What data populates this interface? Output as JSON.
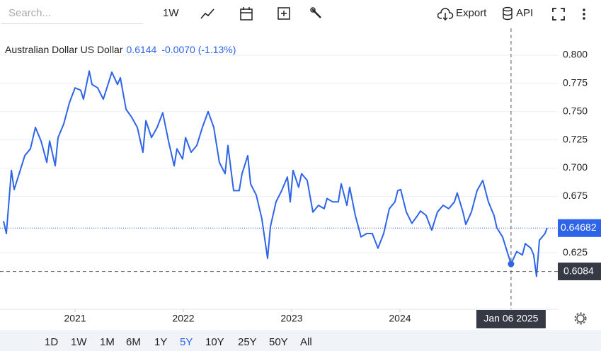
{
  "toolbar": {
    "search_placeholder": "Search...",
    "interval": "1W",
    "export": "Export",
    "api": "API"
  },
  "ranges": [
    "1D",
    "1W",
    "1M",
    "6M",
    "1Y",
    "5Y",
    "10Y",
    "25Y",
    "50Y",
    "All"
  ],
  "active_range": "5Y",
  "chart_data": {
    "type": "line",
    "legend": {
      "name": "Australian Dollar US Dollar",
      "price": "0.6144",
      "change": "-0.0070 (-1.13%)"
    },
    "x": [
      2020.34,
      2020.366,
      2020.412,
      2020.438,
      2020.484,
      2020.536,
      2020.588,
      2020.634,
      2020.686,
      2020.739,
      2020.765,
      2020.817,
      2020.843,
      2020.895,
      2020.948,
      2021.0,
      2021.052,
      2021.078,
      2021.131,
      2021.157,
      2021.209,
      2021.261,
      2021.314,
      2021.34,
      2021.392,
      2021.418,
      2021.471,
      2021.523,
      2021.575,
      2021.627,
      2021.654,
      2021.706,
      2021.758,
      2021.81,
      2021.863,
      2021.915,
      2021.941,
      2021.993,
      2022.02,
      2022.072,
      2022.124,
      2022.176,
      2022.229,
      2022.281,
      2022.333,
      2022.386,
      2022.412,
      2022.464,
      2022.516,
      2022.542,
      2022.595,
      2022.621,
      2022.673,
      2022.725,
      2022.778,
      2022.804,
      2022.856,
      2022.908,
      2022.961,
      2022.987,
      2023.013,
      2023.065,
      2023.092,
      2023.144,
      2023.196,
      2023.248,
      2023.301,
      2023.327,
      2023.379,
      2023.431,
      2023.458,
      2023.51,
      2023.536,
      2023.588,
      2023.641,
      2023.693,
      2023.745,
      2023.797,
      2023.85,
      2023.902,
      2023.954,
      2023.98,
      2024.007,
      2024.059,
      2024.111,
      2024.163,
      2024.19,
      2024.242,
      2024.294,
      2024.346,
      2024.399,
      2024.451,
      2024.503,
      2024.529,
      2024.582,
      2024.608,
      2024.66,
      2024.712,
      2024.765,
      2024.817,
      2024.869,
      2024.895,
      2024.948,
      2025.0,
      2025.026,
      2025.078,
      2025.131,
      2025.157,
      2025.209,
      2025.235,
      2025.261,
      2025.288,
      2025.34,
      2025.359
    ],
    "series": [
      {
        "name": "Australian Dollar US Dollar",
        "color": "#2e64e8",
        "values": [
          0.653,
          0.642,
          0.698,
          0.681,
          0.695,
          0.711,
          0.717,
          0.736,
          0.724,
          0.705,
          0.724,
          0.702,
          0.727,
          0.739,
          0.758,
          0.771,
          0.769,
          0.761,
          0.786,
          0.774,
          0.771,
          0.761,
          0.777,
          0.785,
          0.774,
          0.78,
          0.752,
          0.745,
          0.736,
          0.714,
          0.742,
          0.727,
          0.736,
          0.749,
          0.724,
          0.702,
          0.717,
          0.708,
          0.727,
          0.714,
          0.72,
          0.736,
          0.75,
          0.736,
          0.705,
          0.695,
          0.72,
          0.68,
          0.68,
          0.695,
          0.711,
          0.686,
          0.676,
          0.655,
          0.62,
          0.648,
          0.67,
          0.68,
          0.692,
          0.67,
          0.698,
          0.683,
          0.695,
          0.689,
          0.661,
          0.667,
          0.664,
          0.673,
          0.67,
          0.67,
          0.686,
          0.667,
          0.683,
          0.658,
          0.639,
          0.642,
          0.642,
          0.629,
          0.642,
          0.664,
          0.67,
          0.68,
          0.681,
          0.661,
          0.651,
          0.658,
          0.662,
          0.658,
          0.645,
          0.661,
          0.667,
          0.664,
          0.67,
          0.678,
          0.661,
          0.65,
          0.661,
          0.68,
          0.689,
          0.67,
          0.658,
          0.647,
          0.639,
          0.623,
          0.615,
          0.626,
          0.623,
          0.633,
          0.629,
          0.623,
          0.604,
          0.636,
          0.642,
          0.647
        ]
      }
    ],
    "xlim": [
      2020.307,
      2025.458
    ],
    "xticks": [
      2021,
      2022,
      2023,
      2024
    ],
    "ylim": [
      0.5749,
      0.8238
    ],
    "yticks": [
      {
        "value": 0.625,
        "label": "0.625"
      },
      {
        "value": 0.675,
        "label": "0.675"
      },
      {
        "value": 0.7,
        "label": "0.700"
      },
      {
        "value": 0.725,
        "label": "0.725"
      },
      {
        "value": 0.75,
        "label": "0.750"
      },
      {
        "value": 0.775,
        "label": "0.775"
      },
      {
        "value": 0.8,
        "label": "0.800"
      }
    ],
    "grid": true,
    "last_value": 0.64682,
    "crosshair": {
      "x": 2025.026,
      "x_label": "Jan 06 2025",
      "y": 0.6084
    }
  }
}
